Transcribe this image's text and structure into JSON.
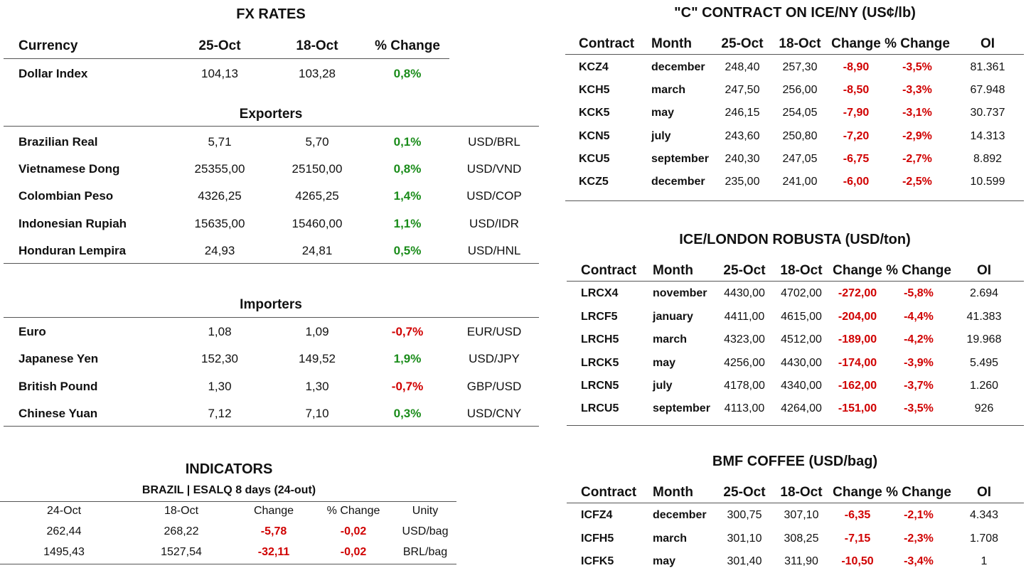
{
  "fx": {
    "title": "FX RATES",
    "header": [
      "Currency",
      "25-Oct",
      "18-Oct",
      "% Change"
    ],
    "dollar_index": [
      "Dollar Index",
      "104,13",
      "103,28",
      "0,8%"
    ],
    "exporters": {
      "title": "Exporters",
      "rows": [
        [
          "Brazilian Real",
          "5,71",
          "5,70",
          "0,1%",
          "USD/BRL"
        ],
        [
          "Vietnamese Dong",
          "25355,00",
          "25150,00",
          "0,8%",
          "USD/VND"
        ],
        [
          "Colombian Peso",
          "4326,25",
          "4265,25",
          "1,4%",
          "USD/COP"
        ],
        [
          "Indonesian Rupiah",
          "15635,00",
          "15460,00",
          "1,1%",
          "USD/IDR"
        ],
        [
          "Honduran Lempira",
          "24,93",
          "24,81",
          "0,5%",
          "USD/HNL"
        ]
      ]
    },
    "importers": {
      "title": "Importers",
      "rows": [
        [
          "Euro",
          "1,08",
          "1,09",
          "-0,7%",
          "EUR/USD"
        ],
        [
          "Japanese Yen",
          "152,30",
          "149,52",
          "1,9%",
          "USD/JPY"
        ],
        [
          "British Pound",
          "1,30",
          "1,30",
          "-0,7%",
          "GBP/USD"
        ],
        [
          "Chinese Yuan",
          "7,12",
          "7,10",
          "0,3%",
          "USD/CNY"
        ]
      ]
    }
  },
  "indicators": {
    "title": "INDICATORS",
    "subtitle": "BRAZIL | ESALQ 8 days (24-out)",
    "header": [
      "24-Oct",
      "18-Oct",
      "Change",
      "% Change",
      "Unity"
    ],
    "rows": [
      [
        "262,44",
        "268,22",
        "-5,78",
        "-0,02",
        "USD/bag"
      ],
      [
        "1495,43",
        "1527,54",
        "-32,11",
        "-0,02",
        "BRL/bag"
      ]
    ]
  },
  "ice_ny": {
    "title": "\"C\" CONTRACT ON ICE/NY (US¢/lb)",
    "header": [
      "Contract",
      "Month",
      "25-Oct",
      "18-Oct",
      "Change",
      "% Change",
      "OI"
    ],
    "rows": [
      [
        "KCZ4",
        "december",
        "248,40",
        "257,30",
        "-8,90",
        "-3,5%",
        "81.361"
      ],
      [
        "KCH5",
        "march",
        "247,50",
        "256,00",
        "-8,50",
        "-3,3%",
        "67.948"
      ],
      [
        "KCK5",
        "may",
        "246,15",
        "254,05",
        "-7,90",
        "-3,1%",
        "30.737"
      ],
      [
        "KCN5",
        "july",
        "243,60",
        "250,80",
        "-7,20",
        "-2,9%",
        "14.313"
      ],
      [
        "KCU5",
        "september",
        "240,30",
        "247,05",
        "-6,75",
        "-2,7%",
        "8.892"
      ],
      [
        "KCZ5",
        "december",
        "235,00",
        "241,00",
        "-6,00",
        "-2,5%",
        "10.599"
      ]
    ]
  },
  "ice_london": {
    "title": "ICE/LONDON ROBUSTA (USD/ton)",
    "header": [
      "Contract",
      "Month",
      "25-Oct",
      "18-Oct",
      "Change",
      "% Change",
      "OI"
    ],
    "rows": [
      [
        "LRCX4",
        "november",
        "4430,00",
        "4702,00",
        "-272,00",
        "-5,8%",
        "2.694"
      ],
      [
        "LRCF5",
        "january",
        "4411,00",
        "4615,00",
        "-204,00",
        "-4,4%",
        "41.383"
      ],
      [
        "LRCH5",
        "march",
        "4323,00",
        "4512,00",
        "-189,00",
        "-4,2%",
        "19.968"
      ],
      [
        "LRCK5",
        "may",
        "4256,00",
        "4430,00",
        "-174,00",
        "-3,9%",
        "5.495"
      ],
      [
        "LRCN5",
        "july",
        "4178,00",
        "4340,00",
        "-162,00",
        "-3,7%",
        "1.260"
      ],
      [
        "LRCU5",
        "september",
        "4113,00",
        "4264,00",
        "-151,00",
        "-3,5%",
        "926"
      ]
    ]
  },
  "bmf": {
    "title": "BMF COFFEE (USD/bag)",
    "header": [
      "Contract",
      "Month",
      "25-Oct",
      "18-Oct",
      "Change",
      "% Change",
      "OI"
    ],
    "rows": [
      [
        "ICFZ4",
        "december",
        "300,75",
        "307,10",
        "-6,35",
        "-2,1%",
        "4.343"
      ],
      [
        "ICFH5",
        "march",
        "301,10",
        "308,25",
        "-7,15",
        "-2,3%",
        "1.708"
      ],
      [
        "ICFK5",
        "may",
        "301,40",
        "311,90",
        "-10,50",
        "-3,4%",
        "1"
      ]
    ]
  }
}
